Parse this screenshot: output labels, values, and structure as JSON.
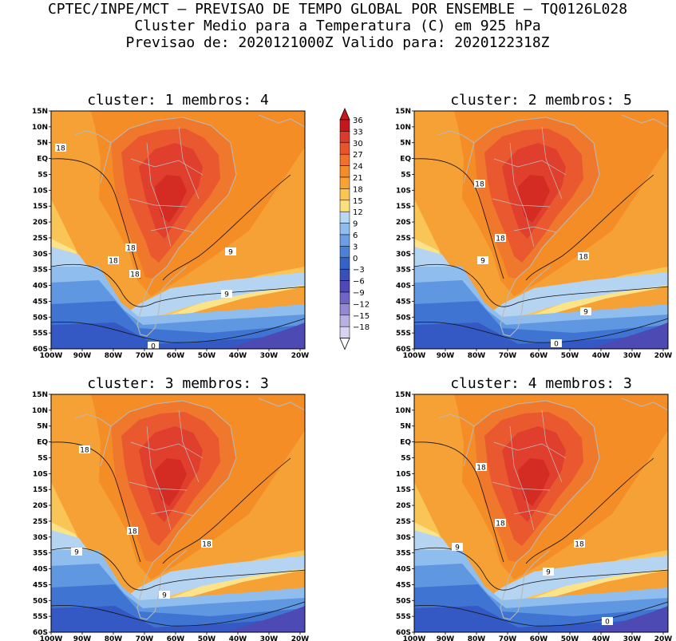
{
  "header": {
    "line1": "CPTEC/INPE/MCT – PREVISAO DE TEMPO GLOBAL POR ENSEMBLE – TQ0126L028",
    "line2": "Cluster Medio para a Temperatura (C) em 925 hPa",
    "line3": "Previsao de: 2020121000Z    Valido para: 2020122318Z"
  },
  "panels": [
    {
      "title": "cluster: 1   membros: 4",
      "contour_labels": [
        "18",
        "18",
        "18",
        "9",
        "18",
        "9",
        "0"
      ]
    },
    {
      "title": "cluster: 2   membros: 5",
      "contour_labels": [
        "18",
        "18",
        "9",
        "18",
        "9",
        "0"
      ]
    },
    {
      "title": "cluster: 3   membros: 3",
      "contour_labels": [
        "18",
        "18",
        "9",
        "18",
        "9"
      ]
    },
    {
      "title": "cluster: 4   membros: 3",
      "contour_labels": [
        "18",
        "18",
        "9",
        "18",
        "9",
        "0"
      ]
    }
  ],
  "axes": {
    "lat_ticks": [
      "15N",
      "10N",
      "5N",
      "EQ",
      "5S",
      "10S",
      "15S",
      "20S",
      "25S",
      "30S",
      "35S",
      "40S",
      "45S",
      "50S",
      "55S",
      "60S"
    ],
    "lon_ticks": [
      "100W",
      "90W",
      "80W",
      "70W",
      "60W",
      "50W",
      "40W",
      "30W",
      "20W"
    ]
  },
  "colorbar": {
    "levels": [
      "36",
      "33",
      "30",
      "27",
      "24",
      "21",
      "18",
      "15",
      "12",
      "9",
      "6",
      "3",
      "0",
      "−3",
      "−6",
      "−9",
      "−12",
      "−15",
      "−18"
    ],
    "colors": [
      "#c8161d",
      "#dc3a2c",
      "#e8542e",
      "#f0702e",
      "#f38c2a",
      "#f8a435",
      "#fbc552",
      "#fce07e",
      "#b8d7f2",
      "#8fbdee",
      "#6a9fe4",
      "#4a80d8",
      "#3563c9",
      "#3b4fb9",
      "#5148b8",
      "#7065c6",
      "#9389d3",
      "#b7b0e1",
      "#d8d3ee"
    ]
  },
  "field_colors": {
    "t33": "#d42c23",
    "t30": "#df3f2c",
    "t27": "#e9582f",
    "t24": "#f0782d",
    "t21": "#f58d26",
    "t18": "#f6a135",
    "t15": "#f9c556",
    "t12": "#fbe38a",
    "t9": "#b5d4f1",
    "t6": "#8fbdee",
    "t3": "#5f97e0",
    "t0": "#3f74d3",
    "tm3": "#3459c4",
    "tm6": "#4d4ab4",
    "coast": "#b8b8b8",
    "border": "#c0c0c0"
  }
}
